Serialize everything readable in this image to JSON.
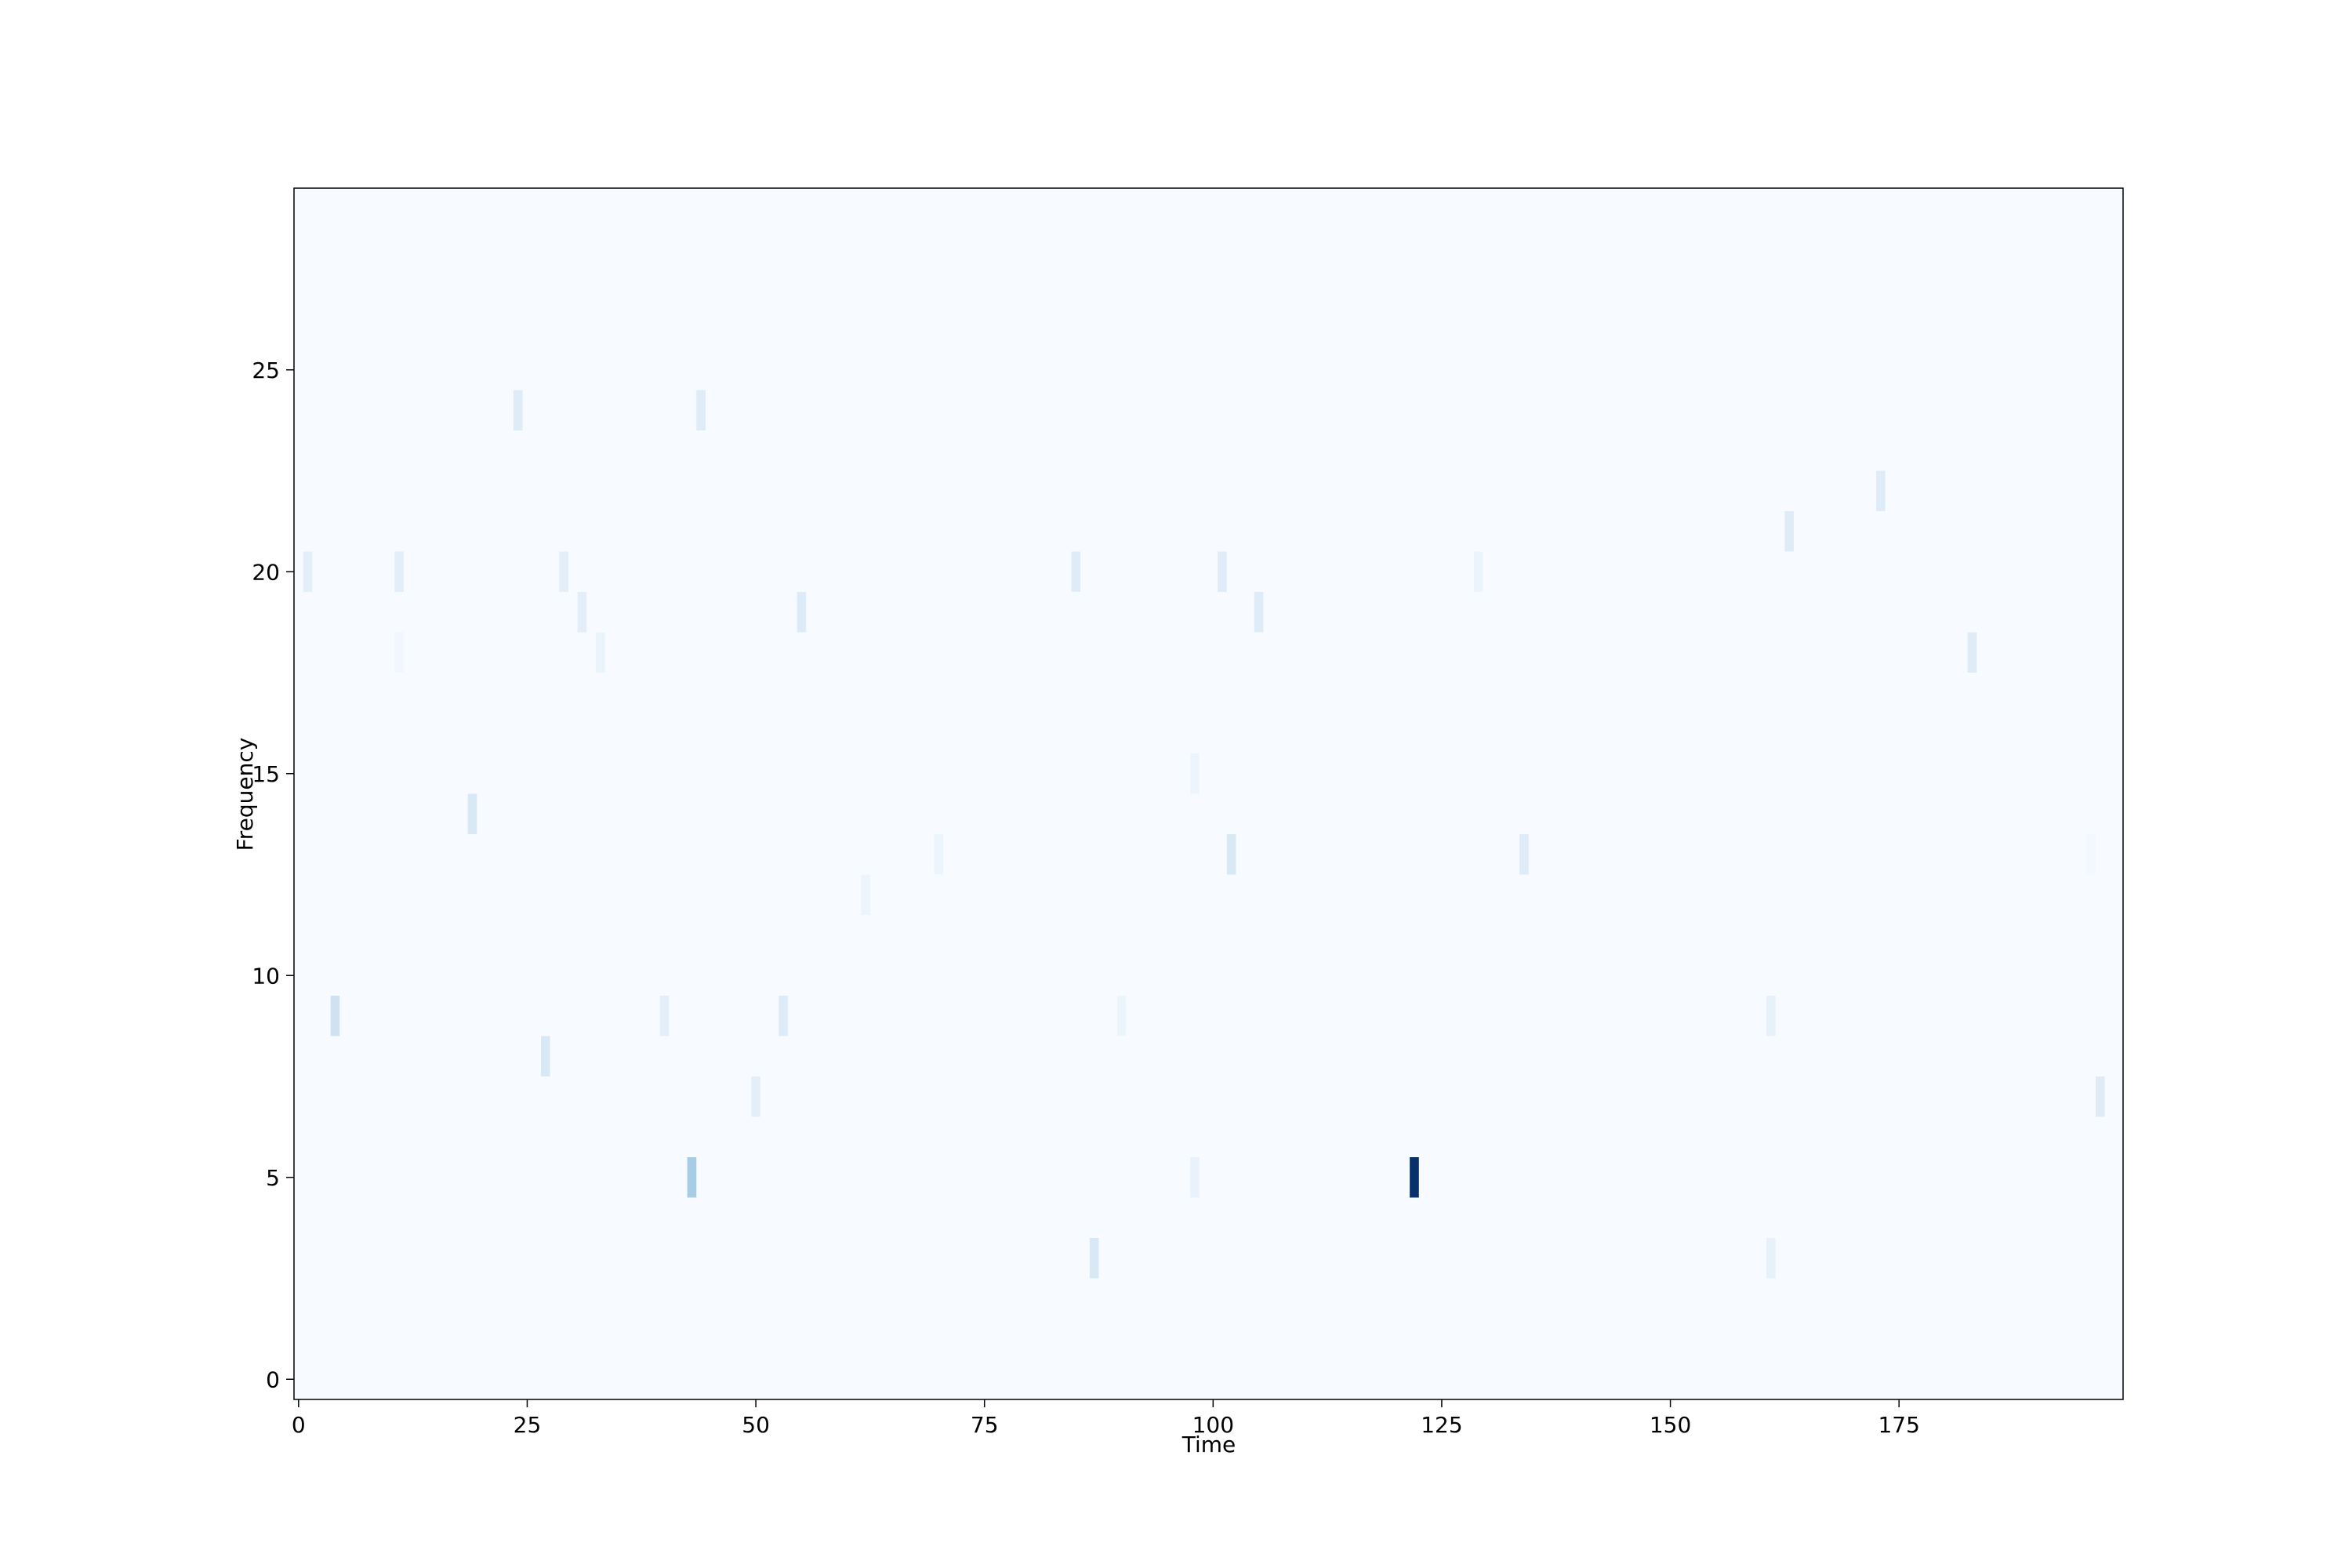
{
  "chart_data": {
    "type": "heatmap",
    "title": "",
    "xlabel": "Time",
    "ylabel": "Frequency",
    "xlim": [
      -0.5,
      199.5
    ],
    "ylim": [
      -0.5,
      29.5
    ],
    "x_ticks": [
      0,
      25,
      50,
      75,
      100,
      125,
      150,
      175
    ],
    "y_ticks": [
      0,
      5,
      10,
      15,
      20,
      25
    ],
    "x_tick_labels": [
      "0",
      "25",
      "50",
      "75",
      "100",
      "125",
      "150",
      "175"
    ],
    "y_tick_labels": [
      "0",
      "5",
      "10",
      "15",
      "20",
      "25"
    ],
    "colormap": "Blues",
    "background_color": "#f7fbff",
    "max_color": "#08306b",
    "grid": false,
    "value_max": 10,
    "cells": [
      {
        "x": 1,
        "y": 20,
        "value": 1
      },
      {
        "x": 4,
        "y": 9,
        "value": 2
      },
      {
        "x": 11,
        "y": 20,
        "value": 1
      },
      {
        "x": 11,
        "y": 18,
        "value": 0.3
      },
      {
        "x": 19,
        "y": 14,
        "value": 1.5
      },
      {
        "x": 24,
        "y": 24,
        "value": 1.2
      },
      {
        "x": 27,
        "y": 8,
        "value": 1.5
      },
      {
        "x": 29,
        "y": 20,
        "value": 1
      },
      {
        "x": 31,
        "y": 19,
        "value": 1
      },
      {
        "x": 33,
        "y": 18,
        "value": 0.6
      },
      {
        "x": 40,
        "y": 9,
        "value": 1
      },
      {
        "x": 43,
        "y": 5,
        "value": 3.5
      },
      {
        "x": 44,
        "y": 24,
        "value": 1.2
      },
      {
        "x": 50,
        "y": 7,
        "value": 1
      },
      {
        "x": 53,
        "y": 9,
        "value": 1.3
      },
      {
        "x": 55,
        "y": 19,
        "value": 1.3
      },
      {
        "x": 62,
        "y": 12,
        "value": 0.5
      },
      {
        "x": 70,
        "y": 13,
        "value": 0.5
      },
      {
        "x": 85,
        "y": 20,
        "value": 1.2
      },
      {
        "x": 87,
        "y": 3,
        "value": 1.5
      },
      {
        "x": 90,
        "y": 9,
        "value": 0.5
      },
      {
        "x": 98,
        "y": 15,
        "value": 0.5
      },
      {
        "x": 98,
        "y": 5,
        "value": 0.7
      },
      {
        "x": 101,
        "y": 20,
        "value": 1.2
      },
      {
        "x": 102,
        "y": 13,
        "value": 1.5
      },
      {
        "x": 105,
        "y": 19,
        "value": 1.2
      },
      {
        "x": 122,
        "y": 5,
        "value": 10
      },
      {
        "x": 129,
        "y": 20,
        "value": 0.6
      },
      {
        "x": 134,
        "y": 13,
        "value": 1.2
      },
      {
        "x": 161,
        "y": 9,
        "value": 0.8
      },
      {
        "x": 161,
        "y": 3,
        "value": 0.8
      },
      {
        "x": 163,
        "y": 21,
        "value": 1.2
      },
      {
        "x": 173,
        "y": 22,
        "value": 1.2
      },
      {
        "x": 183,
        "y": 18,
        "value": 1.2
      },
      {
        "x": 196,
        "y": 13,
        "value": 0.2
      },
      {
        "x": 197,
        "y": 7,
        "value": 1.2
      }
    ]
  }
}
